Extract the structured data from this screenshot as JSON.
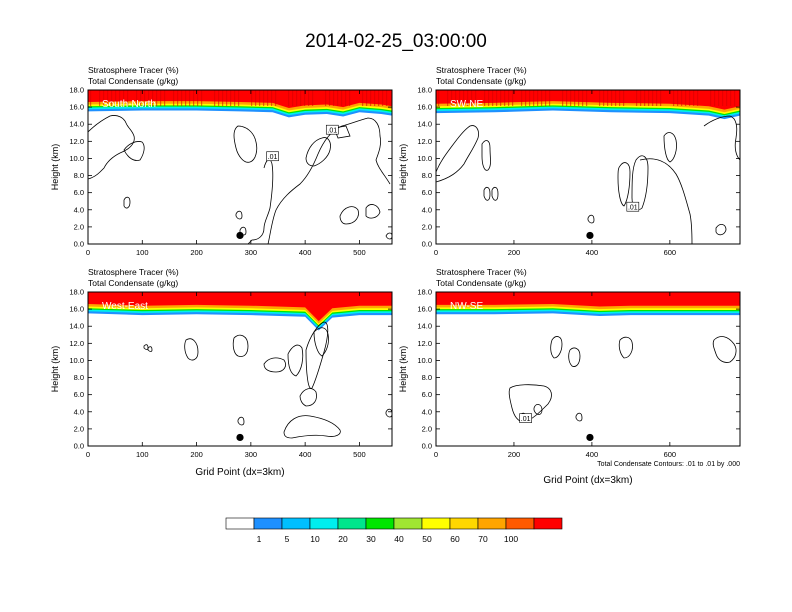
{
  "title": "2014-02-25_03:00:00",
  "chart_data": [
    {
      "type": "heatmap",
      "panel_label": "South-North",
      "header": [
        "Stratosphere Tracer   (%)",
        "Total Condensate   (g/kg)"
      ],
      "ylabel": "Height (km)",
      "xlabel": "",
      "xlim": [
        0,
        560
      ],
      "ylim": [
        0,
        18
      ],
      "xticks": [
        0,
        100,
        200,
        300,
        400,
        500
      ],
      "yticks": [
        "0.0",
        "2.0",
        "4.0",
        "6.0",
        "8.0",
        "10.0",
        "12.0",
        "14.0",
        "16.0",
        "18.0"
      ],
      "tracer_layer_base_km": [
        [
          0,
          15.5
        ],
        [
          100,
          15.6
        ],
        [
          200,
          15.6
        ],
        [
          280,
          15.5
        ],
        [
          340,
          15.4
        ],
        [
          370,
          14.8
        ],
        [
          400,
          15.1
        ],
        [
          440,
          15.2
        ],
        [
          470,
          14.9
        ],
        [
          500,
          15.4
        ],
        [
          540,
          15.2
        ],
        [
          560,
          15.0
        ]
      ],
      "station_marker": [
        280,
        1.0
      ],
      "contour_labels": [
        {
          "text": ".01",
          "x": 340,
          "y": 10.2
        },
        {
          "text": ".01",
          "x": 450,
          "y": 13.3
        }
      ],
      "footnote": ""
    },
    {
      "type": "heatmap",
      "panel_label": "SW-NE",
      "header": [
        "Stratosphere Tracer   (%)",
        "Total Condensate   (g/kg)"
      ],
      "ylabel": "Height (km)",
      "xlabel": "",
      "xlim": [
        0,
        780
      ],
      "ylim": [
        0,
        18
      ],
      "xticks": [
        0,
        200,
        400,
        600
      ],
      "yticks": [
        "0.0",
        "2.0",
        "4.0",
        "6.0",
        "8.0",
        "10.0",
        "12.0",
        "14.0",
        "16.0",
        "18.0"
      ],
      "tracer_layer_base_km": [
        [
          0,
          15.3
        ],
        [
          150,
          15.4
        ],
        [
          300,
          15.6
        ],
        [
          450,
          15.4
        ],
        [
          600,
          15.3
        ],
        [
          700,
          15.0
        ],
        [
          740,
          14.6
        ],
        [
          780,
          15.0
        ]
      ],
      "station_marker": [
        395,
        1.0
      ],
      "contour_labels": [
        {
          "text": ".01",
          "x": 505,
          "y": 4.3
        }
      ],
      "footnote": ""
    },
    {
      "type": "heatmap",
      "panel_label": "West-East",
      "header": [
        "Stratosphere Tracer   (%)",
        "Total Condensate   (g/kg)"
      ],
      "ylabel": "Height (km)",
      "xlabel": "Grid Point (dx=3km)",
      "xlim": [
        0,
        560
      ],
      "ylim": [
        0,
        18
      ],
      "xticks": [
        0,
        100,
        200,
        300,
        400,
        500
      ],
      "yticks": [
        "0.0",
        "2.0",
        "4.0",
        "6.0",
        "8.0",
        "10.0",
        "12.0",
        "14.0",
        "16.0",
        "18.0"
      ],
      "tracer_layer_base_km": [
        [
          0,
          15.5
        ],
        [
          100,
          15.3
        ],
        [
          200,
          15.4
        ],
        [
          300,
          15.3
        ],
        [
          400,
          15.1
        ],
        [
          425,
          13.5
        ],
        [
          450,
          15.0
        ],
        [
          500,
          15.3
        ],
        [
          560,
          15.3
        ]
      ],
      "station_marker": [
        280,
        1.0
      ],
      "contour_labels": [],
      "footnote": ""
    },
    {
      "type": "heatmap",
      "panel_label": "NW-SE",
      "header": [
        "Stratosphere Tracer   (%)",
        "Total Condensate   (g/kg)"
      ],
      "ylabel": "Height (km)",
      "xlabel": "Grid Point (dx=3km)",
      "xlim": [
        0,
        780
      ],
      "ylim": [
        0,
        18
      ],
      "xticks": [
        0,
        200,
        400,
        600
      ],
      "yticks": [
        "0.0",
        "2.0",
        "4.0",
        "6.0",
        "8.0",
        "10.0",
        "12.0",
        "14.0",
        "16.0",
        "18.0"
      ],
      "tracer_layer_base_km": [
        [
          0,
          15.4
        ],
        [
          150,
          15.4
        ],
        [
          300,
          15.5
        ],
        [
          420,
          15.2
        ],
        [
          500,
          15.3
        ],
        [
          650,
          15.3
        ],
        [
          780,
          15.3
        ]
      ],
      "station_marker": [
        395,
        1.0
      ],
      "contour_labels": [
        {
          "text": ".01",
          "x": 230,
          "y": 3.2
        }
      ],
      "footnote": "Total Condensate Contours: .01 to .01 by .000"
    }
  ],
  "colorbar": {
    "colors": [
      "#ffffff",
      "#1e90ff",
      "#00bfff",
      "#00eeee",
      "#00e68c",
      "#00e600",
      "#a0e632",
      "#ffff00",
      "#ffd700",
      "#ffa500",
      "#ff5a00",
      "#ff0000"
    ],
    "labels": [
      "1",
      "5",
      "10",
      "20",
      "30",
      "40",
      "50",
      "60",
      "70",
      "100"
    ]
  }
}
